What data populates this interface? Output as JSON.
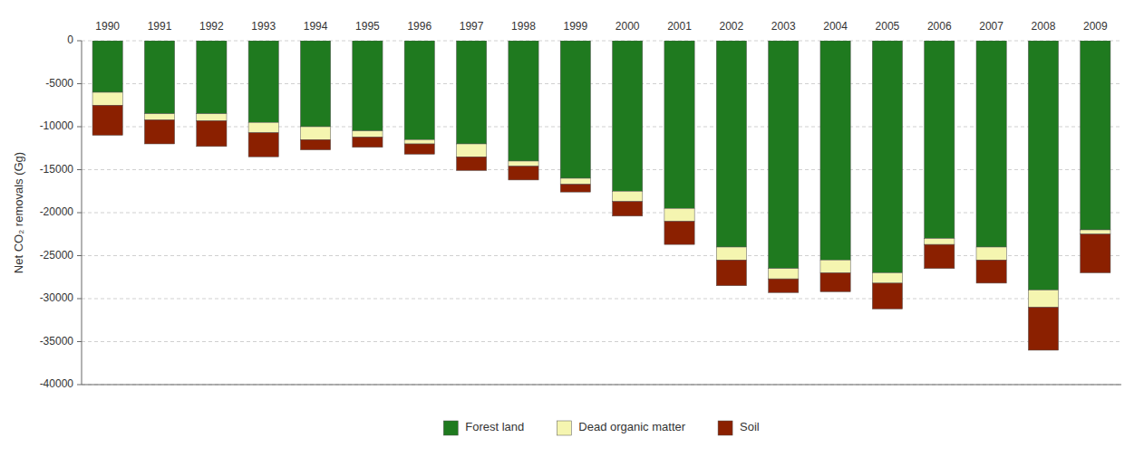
{
  "chart_data": {
    "type": "bar",
    "stacked": true,
    "categories": [
      "1990",
      "1991",
      "1992",
      "1993",
      "1994",
      "1995",
      "1996",
      "1997",
      "1998",
      "1999",
      "2000",
      "2001",
      "2002",
      "2003",
      "2004",
      "2005",
      "2006",
      "2007",
      "2008",
      "2009"
    ],
    "series": [
      {
        "name": "Forest land",
        "color": "#1f7a1f",
        "values": [
          -6000,
          -8500,
          -8500,
          -9500,
          -10000,
          -10500,
          -11500,
          -12000,
          -14000,
          -16000,
          -17500,
          -19500,
          -24000,
          -26500,
          -25500,
          -27000,
          -23000,
          -24000,
          -29000,
          -22000
        ]
      },
      {
        "name": "Dead organic matter",
        "color": "#f5f5b0",
        "values": [
          -1500,
          -700,
          -800,
          -1200,
          -1500,
          -700,
          -500,
          -1500,
          -600,
          -700,
          -1200,
          -1500,
          -1500,
          -1200,
          -1500,
          -1200,
          -700,
          -1500,
          -2000,
          -500
        ]
      },
      {
        "name": "Soil",
        "color": "#8b2000",
        "values": [
          -3500,
          -2800,
          -3000,
          -2800,
          -1200,
          -1200,
          -1200,
          -1600,
          -1600,
          -900,
          -1700,
          -2700,
          -3000,
          -1600,
          -2200,
          -3000,
          -2800,
          -2700,
          -5000,
          -4500
        ]
      }
    ],
    "y_label": "Net CO₂ removals (Gg)",
    "ylim": [
      -40000,
      0
    ],
    "yticks": [
      0,
      -5000,
      -10000,
      -15000,
      -20000,
      -25000,
      -30000,
      -35000,
      -40000
    ],
    "grid": true,
    "legend": "bottom"
  }
}
